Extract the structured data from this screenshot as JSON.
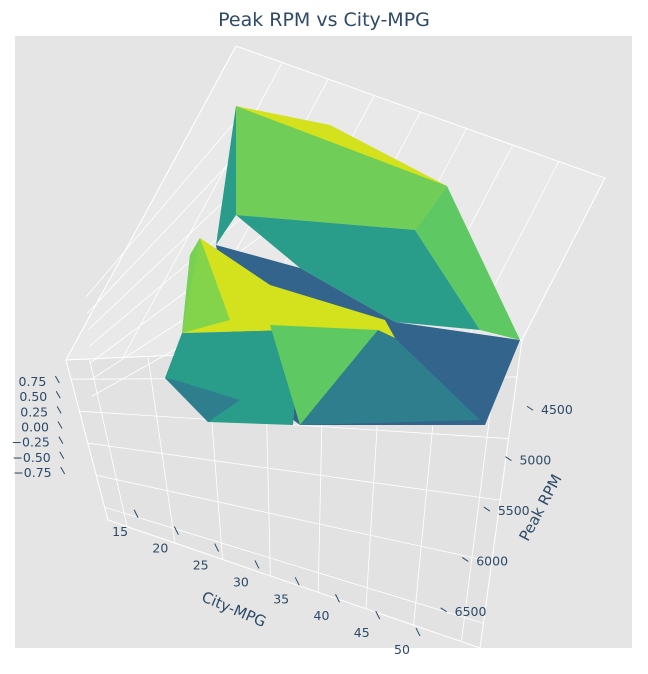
{
  "chart_data": {
    "type": "surface3d",
    "title": "Peak RPM vs City-MPG",
    "xlabel": "City-MPG",
    "ylabel": "Peak RPM",
    "zlabel": "",
    "x_ticks": [
      "15",
      "20",
      "25",
      "30",
      "35",
      "40",
      "45",
      "50"
    ],
    "y_ticks": [
      "4500",
      "5000",
      "5500",
      "6000",
      "6500"
    ],
    "z_ticks": [
      "0.75",
      "0.50",
      "0.25",
      "0.00",
      "−0.25",
      "−0.50",
      "−0.75"
    ],
    "xlim": [
      13,
      50
    ],
    "ylim": [
      4200,
      6700
    ],
    "zlim": [
      -0.85,
      0.85
    ],
    "colormap": "viridis",
    "grid": true,
    "background": "#e5e5e5"
  }
}
